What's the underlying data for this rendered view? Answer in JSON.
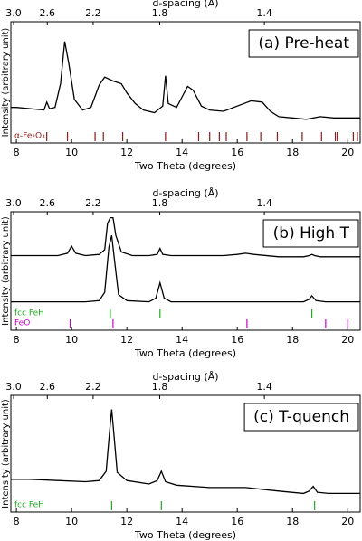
{
  "chart_data": [
    {
      "type": "line",
      "title": "(a) Pre-heat",
      "xlabel": "Two Theta (degrees)",
      "x2label": "d-spacing (Å)",
      "ylabel": "Intensity (arbitrary unit)",
      "xlim": [
        7.8,
        20.45
      ],
      "xticks": [
        8,
        10,
        12,
        14,
        16,
        18,
        20
      ],
      "x2ticks": [
        {
          "value": 7.9,
          "label": "3.0"
        },
        {
          "value": 9.12,
          "label": "2.6"
        },
        {
          "value": 10.78,
          "label": "2.2"
        },
        {
          "value": 13.19,
          "label": "1.8"
        },
        {
          "value": 16.98,
          "label": "1.4"
        }
      ],
      "ylim": [
        0,
        92
      ],
      "series": [
        {
          "color": "#000000",
          "x": [
            7.8,
            8.0,
            8.5,
            9.0,
            9.1,
            9.2,
            9.4,
            9.6,
            9.75,
            9.9,
            10.1,
            10.4,
            10.7,
            11.0,
            11.2,
            11.5,
            11.8,
            12.0,
            12.3,
            12.6,
            13.0,
            13.3,
            13.4,
            13.5,
            13.8,
            14.0,
            14.2,
            14.4,
            14.7,
            15.0,
            15.5,
            16.0,
            16.5,
            16.9,
            17.2,
            17.5,
            18.0,
            18.5,
            19.0,
            19.5,
            20.0,
            20.45
          ],
          "values": [
            27,
            27,
            26,
            25,
            31,
            26,
            27,
            45,
            77,
            60,
            33,
            25,
            27,
            44,
            50,
            47,
            45,
            38,
            30,
            25,
            23,
            28,
            51,
            30,
            27,
            35,
            43,
            40,
            28,
            25,
            24,
            28,
            32,
            31,
            24,
            20,
            19,
            18,
            20,
            19,
            19,
            19
          ]
        }
      ],
      "references": [
        {
          "name": "α-Fe₂O₃",
          "color": "#8b1a1a",
          "positions": [
            9.1,
            9.85,
            10.85,
            11.15,
            11.85,
            13.4,
            14.6,
            15.0,
            15.35,
            15.6,
            16.35,
            16.85,
            17.45,
            18.35,
            19.05,
            19.55,
            19.62,
            20.2,
            20.35
          ]
        }
      ]
    },
    {
      "type": "line",
      "title": "(b) High T",
      "xlabel": "Two Theta (degrees)",
      "x2label": "d-spacing (Å)",
      "ylabel": "Intensity (arbitrary unit)",
      "xlim": [
        7.8,
        20.45
      ],
      "xticks": [
        8,
        10,
        12,
        14,
        16,
        18,
        20
      ],
      "x2ticks": [
        {
          "value": 7.9,
          "label": "3.0"
        },
        {
          "value": 9.12,
          "label": "2.6"
        },
        {
          "value": 10.78,
          "label": "2.2"
        },
        {
          "value": 13.19,
          "label": "1.8"
        },
        {
          "value": 16.98,
          "label": "1.4"
        }
      ],
      "ylim": [
        0,
        100
      ],
      "series": [
        {
          "color": "#000000",
          "x": [
            7.8,
            8.5,
            9.5,
            9.85,
            10.0,
            10.15,
            10.5,
            11.0,
            11.2,
            11.3,
            11.4,
            11.5,
            11.6,
            11.8,
            12.2,
            12.8,
            13.1,
            13.2,
            13.3,
            13.6,
            14.5,
            15.5,
            16.0,
            16.3,
            16.6,
            17.5,
            18.4,
            18.6,
            18.7,
            18.8,
            19.0,
            20.45
          ],
          "values": [
            63,
            63,
            63,
            65,
            71,
            65,
            63,
            64,
            68,
            90,
            95,
            95,
            80,
            66,
            63,
            63,
            64,
            69,
            64,
            63,
            63,
            63,
            64,
            65,
            64,
            62,
            62,
            63,
            64,
            63,
            62,
            62
          ]
        },
        {
          "color": "#000000",
          "x": [
            7.8,
            9.0,
            10.5,
            11.0,
            11.2,
            11.35,
            11.45,
            11.55,
            11.7,
            12.0,
            12.8,
            13.05,
            13.2,
            13.35,
            13.6,
            15.0,
            17.0,
            18.4,
            18.6,
            18.7,
            18.85,
            19.2,
            20.45
          ],
          "values": [
            24,
            24,
            24,
            25,
            32,
            70,
            80,
            60,
            30,
            25,
            24,
            27,
            40,
            27,
            24,
            24,
            24,
            24,
            26,
            29,
            25,
            24,
            24
          ]
        }
      ],
      "references": [
        {
          "name": "fcc FeH",
          "color": "#22aa22",
          "positions": [
            11.4,
            13.2,
            18.7
          ]
        },
        {
          "name": "FeO",
          "color": "#cc00cc",
          "positions": [
            9.95,
            11.5,
            16.35,
            19.2,
            20.0
          ]
        }
      ]
    },
    {
      "type": "line",
      "title": "(c) T-quench",
      "xlabel": "Two Theta (degrees)",
      "x2label": "d-spacing (Å)",
      "ylabel": "Intensity (arbitrary unit)",
      "xlim": [
        7.8,
        20.45
      ],
      "xticks": [
        8,
        10,
        12,
        14,
        16,
        18,
        20
      ],
      "x2ticks": [
        {
          "value": 7.9,
          "label": "3.0"
        },
        {
          "value": 9.12,
          "label": "2.6"
        },
        {
          "value": 10.78,
          "label": "2.2"
        },
        {
          "value": 13.19,
          "label": "1.8"
        },
        {
          "value": 16.98,
          "label": "1.4"
        }
      ],
      "ylim": [
        0,
        100
      ],
      "series": [
        {
          "color": "#000000",
          "x": [
            7.8,
            8.5,
            9.5,
            10.5,
            11.0,
            11.25,
            11.38,
            11.45,
            11.52,
            11.65,
            12.0,
            12.8,
            13.1,
            13.25,
            13.4,
            13.8,
            15.0,
            16.3,
            17.5,
            18.4,
            18.6,
            18.75,
            18.9,
            19.3,
            20.45
          ],
          "values": [
            28,
            28,
            27,
            26,
            27,
            35,
            70,
            88,
            70,
            34,
            27,
            24,
            27,
            35,
            26,
            23,
            21,
            21,
            18,
            16,
            18,
            22,
            17,
            16,
            16
          ]
        }
      ],
      "references": [
        {
          "name": "fcc FeH",
          "color": "#22aa22",
          "positions": [
            11.45,
            13.25,
            18.8
          ]
        }
      ]
    }
  ]
}
